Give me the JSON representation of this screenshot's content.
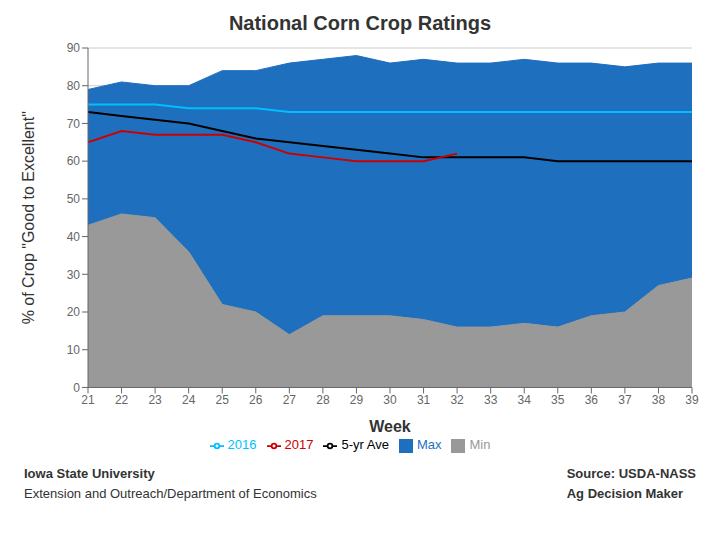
{
  "chart_data": {
    "type": "line",
    "title": "National Corn Crop Ratings",
    "x_label": "Week",
    "y_label": "% of Crop \"Good to Excellent\"",
    "x": [
      21,
      22,
      23,
      24,
      25,
      26,
      27,
      28,
      29,
      30,
      31,
      32,
      33,
      34,
      35,
      36,
      37,
      38,
      39
    ],
    "series": [
      {
        "name": "Max",
        "type": "area",
        "color": "#1F6FBF",
        "values": [
          79,
          81,
          80,
          80,
          84,
          84,
          86,
          87,
          88,
          86,
          87,
          86,
          86,
          87,
          86,
          86,
          85,
          86,
          86
        ]
      },
      {
        "name": "Min",
        "type": "area",
        "color": "#999999",
        "values": [
          43,
          46,
          45,
          36,
          22,
          20,
          14,
          19,
          19,
          19,
          18,
          16,
          16,
          17,
          16,
          19,
          20,
          27,
          29
        ]
      },
      {
        "name": "5-yr Ave",
        "type": "line",
        "color": "#000000",
        "values": [
          73,
          72,
          71,
          70,
          68,
          66,
          65,
          64,
          63,
          62,
          61,
          61,
          61,
          61,
          60,
          60,
          60,
          60,
          60
        ]
      },
      {
        "name": "2016",
        "type": "line",
        "color": "#00BFFF",
        "values": [
          75,
          75,
          75,
          74,
          74,
          74,
          73,
          73,
          73,
          73,
          73,
          73,
          73,
          73,
          73,
          73,
          73,
          73,
          73
        ]
      },
      {
        "name": "2017",
        "type": "line",
        "color": "#CC0000",
        "values": [
          65,
          68,
          67,
          67,
          67,
          65,
          62,
          61,
          60,
          60,
          60,
          62,
          null,
          null,
          null,
          null,
          null,
          null,
          null
        ]
      }
    ],
    "xlim": [
      21,
      39
    ],
    "xticks": [
      21,
      22,
      23,
      24,
      25,
      26,
      27,
      28,
      29,
      30,
      31,
      32,
      33,
      34,
      35,
      36,
      37,
      38,
      39
    ],
    "ylim": [
      0,
      90
    ],
    "yticks": [
      0,
      10,
      20,
      30,
      40,
      50,
      60,
      70,
      80,
      90
    ],
    "grid": true,
    "legend": "bottom",
    "annotations": [
      "Iowa State University",
      "Extension and Outreach/Department of Economics",
      "Source: USDA-NASS",
      "Ag Decision Maker"
    ]
  }
}
